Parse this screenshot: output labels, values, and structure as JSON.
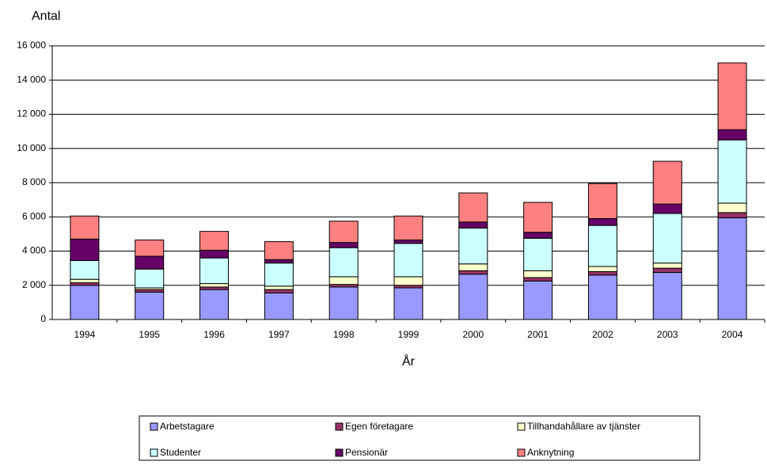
{
  "chart_data": {
    "type": "stacked_bar",
    "y_title": "Antal",
    "x_title": "År",
    "categories": [
      "1994",
      "1995",
      "1996",
      "1997",
      "1998",
      "1999",
      "2000",
      "2001",
      "2002",
      "2003",
      "2004"
    ],
    "series": [
      {
        "name": "Arbetstagare",
        "color": "#9999ff",
        "values": [
          2000,
          1600,
          1750,
          1550,
          1900,
          1850,
          2650,
          2250,
          2600,
          2750,
          5950
        ]
      },
      {
        "name": "Egen företagare",
        "color": "#993366",
        "values": [
          150,
          150,
          150,
          200,
          150,
          150,
          200,
          200,
          200,
          250,
          300
        ]
      },
      {
        "name": "Tillhandahållare av tjänster",
        "color": "#ffffcc",
        "values": [
          200,
          100,
          200,
          200,
          450,
          500,
          400,
          400,
          300,
          300,
          550
        ]
      },
      {
        "name": "Studenter",
        "color": "#ccffff",
        "values": [
          1100,
          1100,
          1500,
          1350,
          1700,
          1950,
          2100,
          1900,
          2400,
          2900,
          3700
        ]
      },
      {
        "name": "Pensionär",
        "color": "#660066",
        "values": [
          1250,
          750,
          450,
          200,
          300,
          200,
          350,
          350,
          400,
          550,
          600
        ]
      },
      {
        "name": "Anknytning",
        "color": "#ff8080",
        "values": [
          1350,
          950,
          1100,
          1050,
          1250,
          1400,
          1700,
          1750,
          2050,
          2500,
          3900
        ]
      }
    ],
    "ylim": [
      0,
      16000
    ],
    "yticks": [
      0,
      {
        "value": 2000,
        "label": "2 000"
      },
      {
        "value": 4000,
        "label": "4 000"
      },
      {
        "value": 6000,
        "label": "6 000"
      },
      {
        "value": 8000,
        "label": "8 000"
      },
      {
        "value": 10000,
        "label": "10 000"
      },
      {
        "value": 12000,
        "label": "12 000"
      },
      {
        "value": 14000,
        "label": "14 000"
      },
      {
        "value": 16000,
        "label": "16 000"
      }
    ],
    "grid": true,
    "legend": "bottom"
  }
}
